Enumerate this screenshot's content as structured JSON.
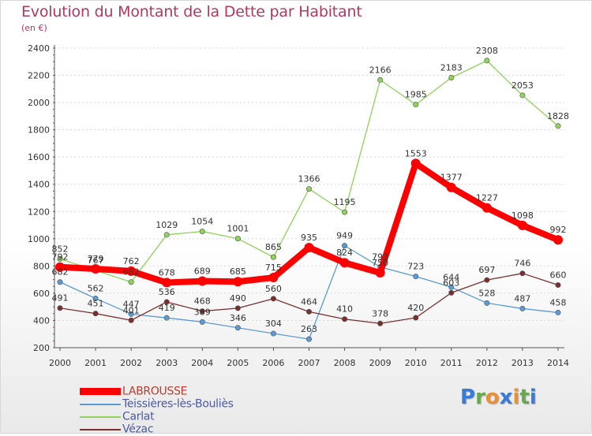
{
  "header": {
    "title": "Evolution du Montant de la Dette par Habitant",
    "unit": "(en €)"
  },
  "logo": {
    "text": "Proxiti",
    "letter_colors": [
      "#3a7bd5",
      "#6aa84f",
      "#e69138",
      "#3a7bd5",
      "#e69138",
      "#6aa84f",
      "#3a7bd5"
    ]
  },
  "chart_data": {
    "type": "line",
    "x": [
      "2000",
      "2001",
      "2002",
      "2003",
      "2004",
      "2005",
      "2006",
      "2007",
      "2008",
      "2009",
      "2010",
      "2011",
      "2012",
      "2013",
      "2014"
    ],
    "ylim": [
      200,
      2400
    ],
    "yticks": [
      "200",
      "400",
      "600",
      "800",
      "1000",
      "1200",
      "1400",
      "1600",
      "1800",
      "2000",
      "2200",
      "2400"
    ],
    "grid": "horizontal",
    "legend_position": "bottom-left",
    "series": [
      {
        "name": "LABROUSSE",
        "color": "#ff0000",
        "emphasis": true,
        "values": [
          792,
          779,
          762,
          678,
          689,
          685,
          715,
          935,
          824,
          750,
          1553,
          1377,
          1227,
          1098,
          992
        ],
        "labels": [
          "792",
          "779",
          "762",
          "678",
          "689",
          "685",
          "715",
          "935",
          "824",
          "750",
          "1553",
          "1377",
          "1227",
          "1098",
          "992"
        ]
      },
      {
        "name": "Teissières-lès-Bouliès",
        "color": "#5b9bd5",
        "values": [
          682,
          562,
          447,
          419,
          389,
          346,
          304,
          263,
          949,
          793,
          723,
          644,
          528,
          487,
          458
        ],
        "labels": [
          "682",
          "562",
          "447",
          "419",
          "389",
          "346",
          "304",
          "263",
          "949",
          "793",
          "723",
          "644",
          "528",
          "487",
          "458"
        ]
      },
      {
        "name": "Carlat",
        "color": "#8fd35a",
        "values": [
          852,
          767,
          682,
          1029,
          1054,
          1001,
          865,
          1366,
          1195,
          2166,
          1985,
          2183,
          2308,
          2053,
          1828
        ],
        "labels": [
          "852",
          "767",
          "682",
          "1029",
          "1054",
          "1001",
          "865",
          "1366",
          "1195",
          "2166",
          "1985",
          "2183",
          "2308",
          "2053",
          "1828"
        ]
      },
      {
        "name": "Vézac",
        "color": "#7a2e2e",
        "values": [
          491,
          451,
          401,
          536,
          468,
          490,
          560,
          464,
          410,
          378,
          420,
          603,
          697,
          746,
          660
        ],
        "labels": [
          "491",
          "451",
          "401",
          "536",
          "468",
          "490",
          "560",
          "464",
          "410",
          "378",
          "420",
          "603",
          "697",
          "746",
          "660"
        ]
      }
    ]
  }
}
